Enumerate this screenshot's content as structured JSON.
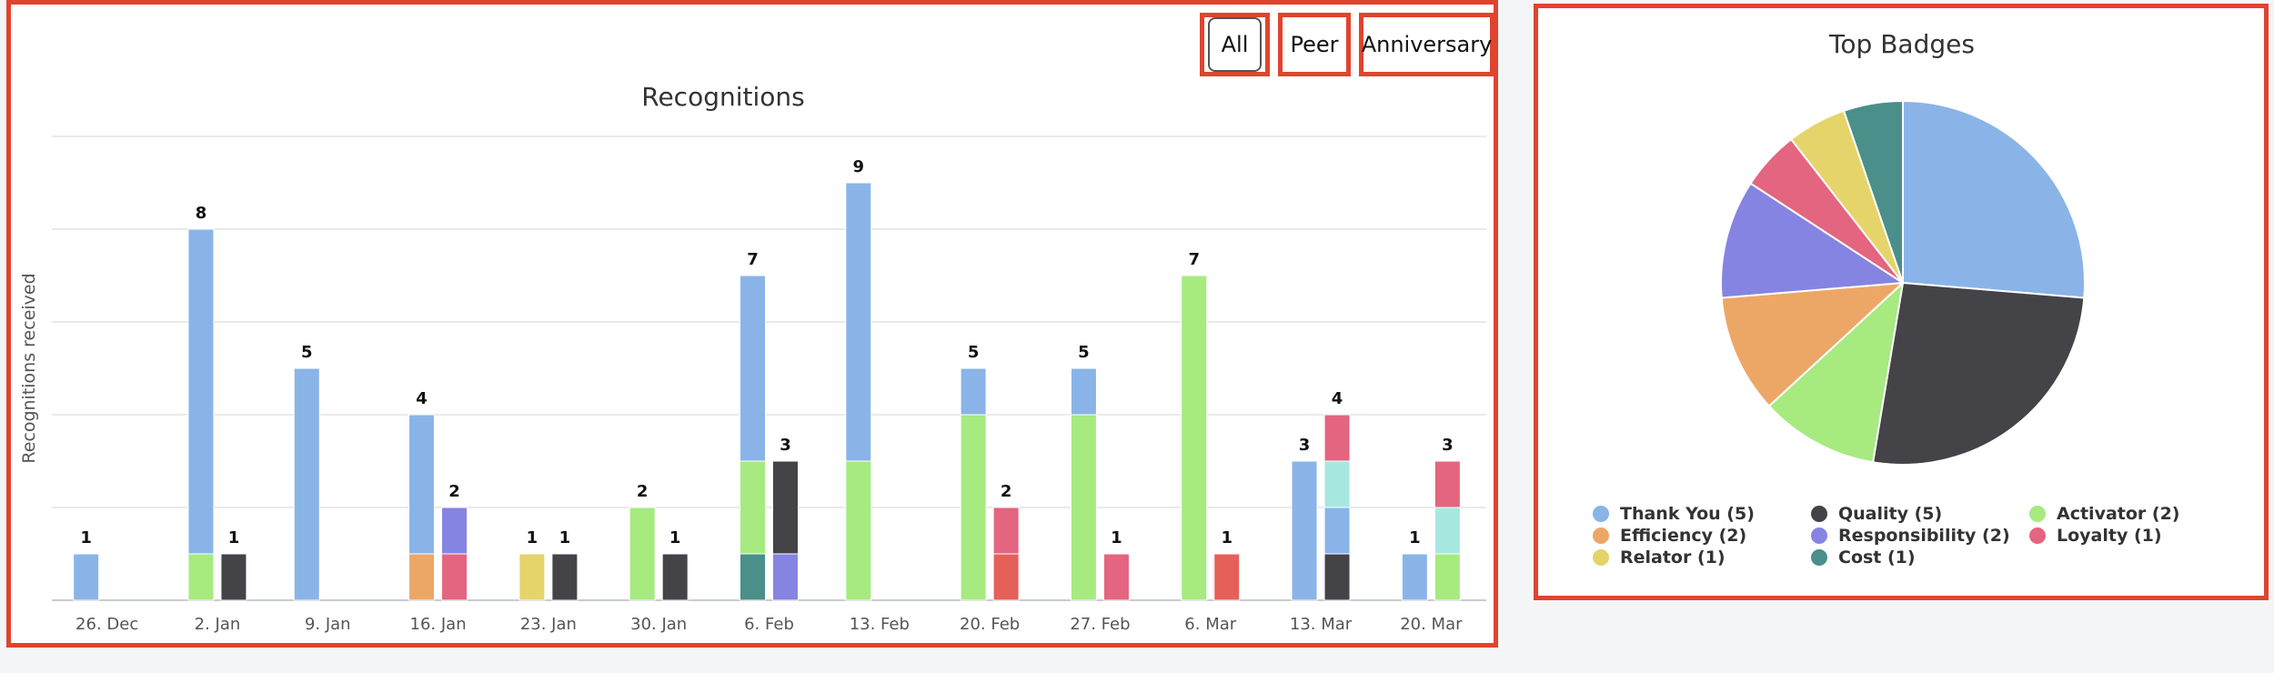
{
  "filters": {
    "all_label": "All",
    "peer_label": "Peer",
    "anniversary_label": "Anniversary"
  },
  "colors": {
    "thank_you": "#8ab4e8",
    "quality": "#434348",
    "activator": "#a6ea80",
    "efficiency": "#eca767",
    "responsibility": "#8584e2",
    "loyalty": "#e36580",
    "relator": "#e4d46a",
    "cost": "#4a8f8a",
    "mint": "#a6e8e0",
    "red": "#e6605a"
  },
  "chart_data": [
    {
      "type": "bar",
      "title": "Recognitions",
      "ylabel": "Recognitions received",
      "ylim": [
        0,
        10
      ],
      "grid": true,
      "categories": [
        "26. Dec",
        "2. Jan",
        "9. Jan",
        "16. Jan",
        "23. Jan",
        "30. Jan",
        "6. Feb",
        "13. Feb",
        "20. Feb",
        "27. Feb",
        "6. Mar",
        "13. Mar",
        "20. Mar"
      ],
      "groups": [
        [
          {
            "total": 1,
            "segments": [
              [
                "thank_you",
                1
              ]
            ]
          }
        ],
        [
          {
            "total": 8,
            "segments": [
              [
                "activator",
                1
              ],
              [
                "thank_you",
                7
              ]
            ]
          },
          {
            "total": 1,
            "segments": [
              [
                "quality",
                1
              ]
            ]
          }
        ],
        [
          {
            "total": 5,
            "segments": [
              [
                "thank_you",
                5
              ]
            ]
          }
        ],
        [
          {
            "total": 4,
            "segments": [
              [
                "efficiency",
                1
              ],
              [
                "thank_you",
                3
              ]
            ]
          },
          {
            "total": 2,
            "segments": [
              [
                "loyalty",
                1
              ],
              [
                "responsibility",
                1
              ]
            ]
          }
        ],
        [
          {
            "total": 1,
            "segments": [
              [
                "relator",
                1
              ]
            ]
          },
          {
            "total": 1,
            "segments": [
              [
                "quality",
                1
              ]
            ]
          }
        ],
        [
          {
            "total": 2,
            "segments": [
              [
                "activator",
                2
              ]
            ]
          },
          {
            "total": 1,
            "segments": [
              [
                "quality",
                1
              ]
            ]
          }
        ],
        [
          {
            "total": 7,
            "segments": [
              [
                "cost",
                1
              ],
              [
                "activator",
                2
              ],
              [
                "thank_you",
                4
              ]
            ]
          },
          {
            "total": 3,
            "segments": [
              [
                "responsibility",
                1
              ],
              [
                "quality",
                2
              ]
            ]
          }
        ],
        [
          {
            "total": 9,
            "segments": [
              [
                "activator",
                3
              ],
              [
                "thank_you",
                6
              ]
            ]
          }
        ],
        [
          {
            "total": 5,
            "segments": [
              [
                "activator",
                4
              ],
              [
                "thank_you",
                1
              ]
            ]
          },
          {
            "total": 2,
            "segments": [
              [
                "red",
                1
              ],
              [
                "loyalty",
                1
              ]
            ]
          }
        ],
        [
          {
            "total": 5,
            "segments": [
              [
                "activator",
                4
              ],
              [
                "thank_you",
                1
              ]
            ]
          },
          {
            "total": 1,
            "segments": [
              [
                "loyalty",
                1
              ]
            ]
          }
        ],
        [
          {
            "total": 7,
            "segments": [
              [
                "activator",
                7
              ]
            ]
          },
          {
            "total": 1,
            "segments": [
              [
                "red",
                1
              ]
            ]
          }
        ],
        [
          {
            "total": 3,
            "segments": [
              [
                "thank_you",
                3
              ]
            ]
          },
          {
            "total": 4,
            "segments": [
              [
                "quality",
                1
              ],
              [
                "thank_you",
                1
              ],
              [
                "mint",
                1
              ],
              [
                "loyalty",
                1
              ]
            ]
          }
        ],
        [
          {
            "total": 1,
            "segments": [
              [
                "thank_you",
                1
              ]
            ]
          },
          {
            "total": 3,
            "segments": [
              [
                "activator",
                1
              ],
              [
                "mint",
                1
              ],
              [
                "loyalty",
                1
              ]
            ]
          }
        ]
      ]
    },
    {
      "type": "pie",
      "title": "Top Badges",
      "legend_position": "bottom",
      "slices": [
        {
          "label": "Thank You (5)",
          "value": 5,
          "color_key": "thank_you"
        },
        {
          "label": "Quality (5)",
          "value": 5,
          "color_key": "quality"
        },
        {
          "label": "Activator (2)",
          "value": 2,
          "color_key": "activator"
        },
        {
          "label": "Efficiency (2)",
          "value": 2,
          "color_key": "efficiency"
        },
        {
          "label": "Responsibility (2)",
          "value": 2,
          "color_key": "responsibility"
        },
        {
          "label": "Loyalty (1)",
          "value": 1,
          "color_key": "loyalty"
        },
        {
          "label": "Relator (1)",
          "value": 1,
          "color_key": "relator"
        },
        {
          "label": "Cost (1)",
          "value": 1,
          "color_key": "cost"
        }
      ]
    }
  ]
}
